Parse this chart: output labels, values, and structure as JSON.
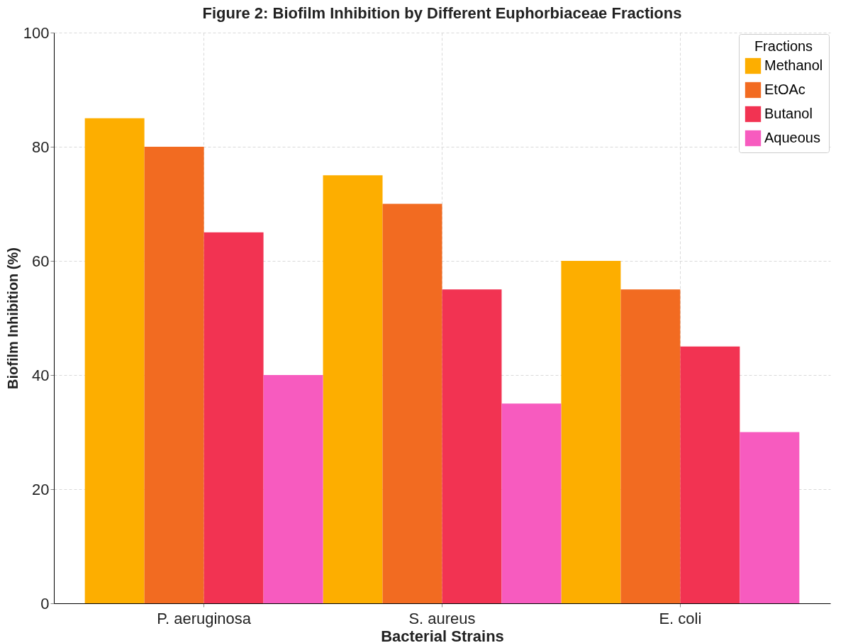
{
  "chart_data": {
    "type": "bar",
    "title": "Figure 2: Biofilm Inhibition by Different Euphorbiaceae Fractions",
    "xlabel": "Bacterial Strains",
    "ylabel": "Biofilm Inhibition (%)",
    "legend_title": "Fractions",
    "categories": [
      "P. aeruginosa",
      "S. aureus",
      "E. coli"
    ],
    "series": [
      {
        "name": "Methanol",
        "color": "#fdae00",
        "values": [
          85,
          75,
          60
        ]
      },
      {
        "name": "EtOAc",
        "color": "#f26b21",
        "values": [
          80,
          70,
          55
        ]
      },
      {
        "name": "Butanol",
        "color": "#f23352",
        "values": [
          65,
          55,
          45
        ]
      },
      {
        "name": "Aqueous",
        "color": "#f75bbf",
        "values": [
          40,
          35,
          30
        ]
      }
    ],
    "ylim": [
      0,
      100
    ],
    "yticks": [
      0,
      20,
      40,
      60,
      80,
      100
    ],
    "grid": true,
    "legend": "top right"
  }
}
